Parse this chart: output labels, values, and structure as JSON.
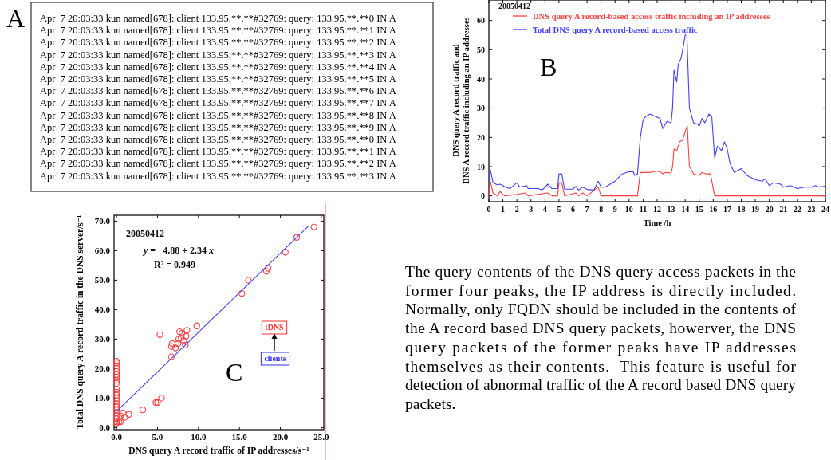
{
  "chart_data": [
    {
      "type": "other",
      "title": "A",
      "annotations": [
        "Apr  7 20:03:33 kun named[678]: client 133.95.**.**#32769: query: 133.95.**.**0 IN A",
        "Apr  7 20:03:33 kun named[678]: client 133.95.**.**#32769: query: 133.95.**.**1 IN A",
        "Apr  7 20:03:33 kun named[678]: client 133.95.**.**#32769: query: 133.95.**.**2 IN A",
        "Apr  7 20:03:33 kun named[678]: client 133.95.**.**#32769: query: 133.95.**.**3 IN A",
        "Apr  7 20:03:33 kun named[678]: client 133.95.**.**#32769: query: 133.95.**.**4 IN A",
        "Apr  7 20:03:33 kun named[678]: client 133.95.**.**#32769: query: 133.95.**.**5 IN A",
        "Apr  7 20:03:33 kun named[678]: client 133.95.**.**#32769: query: 133.95.**.**6 IN A",
        "Apr  7 20:03:33 kun named[678]: client 133.95.**.**#32769: query: 133.95.**.**7 IN A",
        "Apr  7 20:03:33 kun named[678]: client 133.95.**.**#32769: query: 133.95.**.**8 IN A",
        "Apr  7 20:03:33 kun named[678]: client 133.95.**.**#32769: query: 133.95.**.**9 IN A",
        "Apr  7 20:03:33 kun named[678]: client 133.95.**.**#32769: query: 133.95.**.**0 IN A",
        "Apr  7 20:03:33 kun named[678]: client 133.95.**.**#32769: query: 133.95.**.**1 IN A",
        "Apr  7 20:03:33 kun named[678]: client 133.95.**.**#32769: query: 133.95.**.**2 IN A",
        "Apr  7 20:03:33 kun named[678]: client 133.95.**.**#32769: query: 133.95.**.**3 IN A"
      ]
    },
    {
      "type": "line",
      "title": "B",
      "annotations": [
        "20050412"
      ],
      "xlabel": "Time /h",
      "ylabel": "DNS query A record traffic and\nDNS A record traffic including an IP addresses",
      "xlim": [
        0,
        24
      ],
      "xticks": [
        0,
        1,
        2,
        3,
        4,
        5,
        6,
        7,
        8,
        9,
        10,
        11,
        12,
        13,
        14,
        15,
        16,
        17,
        18,
        19,
        20,
        21,
        22,
        23,
        24
      ],
      "ylim": [
        -2,
        67
      ],
      "yticks": [
        0,
        10,
        20,
        30,
        40,
        50,
        60
      ],
      "legend": "top left",
      "series": [
        {
          "name": "DNS query A record-based access traffic including an IP addresses",
          "color": "#ff4040",
          "x": [
            0,
            0.1,
            0.3,
            0.6,
            0.8,
            1.1,
            2,
            2.6,
            2.8,
            4.2,
            4.5,
            4.9,
            5,
            5.2,
            5.4,
            6.2,
            6.4,
            6.7,
            7,
            7.8,
            8,
            10.6,
            10.8,
            11.5,
            12,
            12.3,
            12.4,
            12.6,
            13,
            13.1,
            13.2,
            13.4,
            13.6,
            13.8,
            14,
            14.15,
            14.3,
            14.6,
            15,
            15.2,
            15.5,
            15.8,
            16.1,
            24
          ],
          "values": [
            0,
            5,
            1,
            0,
            1.5,
            0,
            0.5,
            1,
            0,
            1,
            0,
            0,
            4.5,
            4.5,
            0,
            1,
            0,
            1,
            0,
            3,
            0,
            0,
            8,
            8,
            8.5,
            8,
            7.5,
            8,
            7.8,
            10,
            16,
            15.5,
            18.5,
            19,
            22,
            24,
            10,
            7.5,
            7,
            8,
            7.5,
            7.5,
            0,
            0
          ]
        },
        {
          "name": "Total DNS query A record-based access traffic",
          "color": "#4040ff",
          "x": [
            0,
            0.1,
            0.3,
            0.6,
            0.8,
            1.2,
            1.5,
            2,
            2.2,
            2.7,
            2.8,
            3.5,
            3.8,
            4.2,
            4.5,
            4.9,
            5,
            5.2,
            5.4,
            6,
            6.2,
            6.4,
            6.7,
            7,
            7.5,
            7.8,
            8,
            8.3,
            9,
            9.5,
            10,
            10.3,
            10.4,
            10.6,
            10.8,
            11,
            11.2,
            11.5,
            11.8,
            12.2,
            12.4,
            12.7,
            13,
            13.1,
            13.2,
            13.4,
            13.5,
            13.7,
            13.9,
            14.1,
            14.3,
            14.6,
            14.9,
            15,
            15.2,
            15.4,
            15.7,
            15.9,
            16.1,
            16.3,
            16.6,
            16.8,
            17,
            17.2,
            17.5,
            18,
            18.4,
            19,
            19.5,
            19.7,
            20,
            20.3,
            20.8,
            21,
            21.5,
            22,
            22.5,
            23,
            23.3,
            23.5,
            24
          ],
          "values": [
            5,
            9,
            4.5,
            3.8,
            4,
            3,
            2.5,
            4.5,
            3,
            3.5,
            2.5,
            2.5,
            2,
            4,
            2.5,
            2.5,
            7.5,
            7.5,
            2.3,
            2.3,
            3.3,
            2,
            3,
            2.2,
            2,
            5,
            3,
            3,
            5,
            7.5,
            8.3,
            8.2,
            7,
            7.5,
            20,
            26,
            27.2,
            28,
            27.3,
            26.5,
            23,
            25.5,
            25,
            30,
            43,
            39,
            45,
            47,
            52,
            58,
            30,
            25,
            24.5,
            23.8,
            26.5,
            25,
            28,
            27,
            13,
            17,
            15.5,
            18.5,
            16,
            11,
            8,
            9.3,
            7,
            5.5,
            5,
            5.8,
            3.5,
            4.5,
            4,
            3,
            3.5,
            2.5,
            3,
            3,
            3.5,
            3,
            3.3
          ]
        }
      ]
    },
    {
      "type": "scatter",
      "title": "C",
      "annotations": [
        "20050412",
        "y =   4.88 + 2.34 x",
        "R² = 0.949",
        "tDNS",
        "clients"
      ],
      "xlabel": "DNS query A record traffic of IP addresses/s⁻¹",
      "ylabel": "Total DNS query A record traffic in the DNS server/s⁻¹",
      "xlim": [
        -0.3,
        25.3
      ],
      "xticks": [
        {
          "value": 0,
          "label": "0.0"
        },
        {
          "value": 5,
          "label": "5.0"
        },
        {
          "value": 10,
          "label": "10.0"
        },
        {
          "value": 15,
          "label": "15.0"
        },
        {
          "value": 20,
          "label": "20.0"
        },
        {
          "value": 25,
          "label": "25.0"
        }
      ],
      "ylim": [
        -0.7,
        72
      ],
      "yticks": [
        {
          "value": 0,
          "label": "0.0"
        },
        {
          "value": 10,
          "label": "10.0"
        },
        {
          "value": 20,
          "label": "20.0"
        },
        {
          "value": 30,
          "label": "30.0"
        },
        {
          "value": 40,
          "label": "40.0"
        },
        {
          "value": 50,
          "label": "50.0"
        },
        {
          "value": 60,
          "label": "60.0"
        },
        {
          "value": 70,
          "label": "70.0"
        }
      ],
      "series": [
        {
          "type": "scatter",
          "marker": "circle",
          "color": "#ff4040",
          "x": [
            0,
            0,
            0,
            0,
            0,
            0,
            0,
            0,
            0,
            0,
            0,
            0,
            0,
            0,
            0,
            0,
            0,
            0,
            0,
            0,
            0,
            0,
            0.3,
            0.3,
            0.5,
            0.8,
            1,
            1.5,
            0.5,
            3.2,
            4.8,
            5,
            5.5,
            5.3,
            6.7,
            6.7,
            6.8,
            7.2,
            7.5,
            7.6,
            7.7,
            7.9,
            8,
            8.2,
            8.4,
            8.5,
            8.6,
            9.8,
            15.3,
            16.1,
            18.3,
            18.5,
            20.6,
            22,
            24.1
          ],
          "values": [
            1.5,
            2,
            3,
            4,
            5,
            6,
            7,
            8,
            9,
            10,
            11,
            12,
            13,
            15,
            16,
            17,
            18,
            19,
            20,
            21,
            22,
            22.5,
            2,
            3.5,
            2,
            5,
            3.5,
            4.5,
            4,
            6,
            8.5,
            8.5,
            10,
            31.5,
            24,
            27.5,
            28.5,
            27,
            28.5,
            30,
            32.5,
            30.5,
            32,
            29.5,
            28,
            31,
            33,
            34.5,
            45.5,
            50,
            53,
            54,
            59.5,
            64.5,
            68
          ]
        },
        {
          "type": "line",
          "marker": "none",
          "color": "#4040ff",
          "x": [
            0,
            23.5
          ],
          "values": [
            5.5,
            68.5
          ]
        }
      ]
    },
    {
      "type": "other",
      "annotations": [
        "The query contents of the DNS query access packets in the former four peaks, the IP address is directly included.  Normally, only FQDN should be included in the contents of the A record based DNS query packets, howerver, the DNS query packets of the former peaks have IP addresses themselves as their contents.  This feature is useful for detection of abnormal traffic of the A record based DNS query packets."
      ]
    }
  ]
}
